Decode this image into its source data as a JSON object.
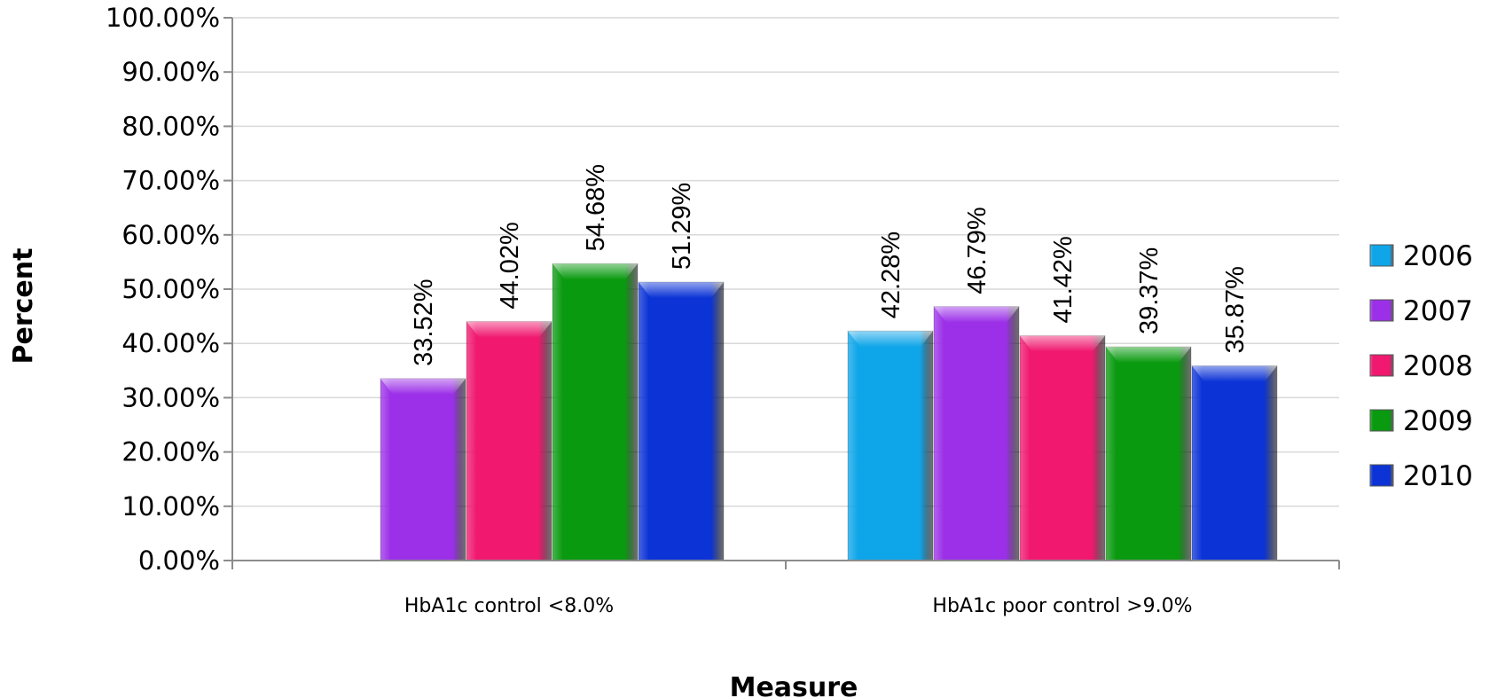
{
  "chart_data": {
    "type": "bar",
    "title": "",
    "xlabel": "Measure",
    "ylabel": "Percent",
    "ylim": [
      0,
      100
    ],
    "yticks": [
      "0.00%",
      "10.00%",
      "20.00%",
      "30.00%",
      "40.00%",
      "50.00%",
      "60.00%",
      "70.00%",
      "80.00%",
      "90.00%",
      "100.00%"
    ],
    "grid": true,
    "legend_position": "right",
    "categories": [
      "HbA1c control <8.0%",
      "HbA1c poor control >9.0%"
    ],
    "series": [
      {
        "name": "2006",
        "color": "#0ea5e9",
        "values": [
          null,
          42.28
        ],
        "labels": [
          "",
          "42.28%"
        ]
      },
      {
        "name": "2007",
        "color": "#9b30e8",
        "values": [
          33.52,
          46.79
        ],
        "labels": [
          "33.52%",
          "46.79%"
        ]
      },
      {
        "name": "2008",
        "color": "#f0186f",
        "values": [
          44.02,
          41.42
        ],
        "labels": [
          "44.02%",
          "41.42%"
        ]
      },
      {
        "name": "2009",
        "color": "#0a9a10",
        "values": [
          54.68,
          39.37
        ],
        "labels": [
          "54.68%",
          "39.37%"
        ]
      },
      {
        "name": "2010",
        "color": "#0b33d6",
        "values": [
          51.29,
          35.87
        ],
        "labels": [
          "51.29%",
          "35.87%"
        ]
      }
    ]
  }
}
